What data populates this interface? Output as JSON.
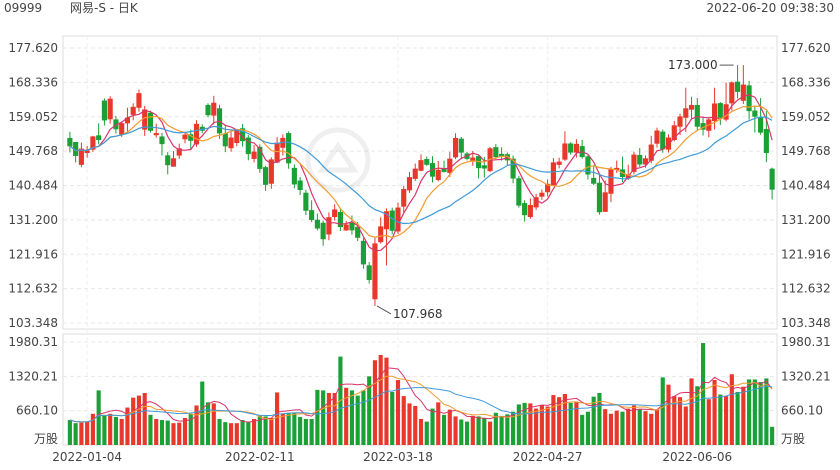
{
  "header": {
    "code": "09999",
    "name": "网易-S - 日K",
    "timestamp": "2022-06-20 09:38:30"
  },
  "chart_data": {
    "type": "candlestick",
    "price_axis": {
      "ylim": [
        103.348,
        177.62
      ],
      "ticks": [
        "177.620",
        "168.336",
        "159.052",
        "149.768",
        "140.484",
        "131.200",
        "121.916",
        "112.632",
        "103.348"
      ]
    },
    "volume_axis": {
      "ylim": [
        0,
        1980.31
      ],
      "ticks": [
        "1980.31",
        "1320.21",
        "660.10"
      ],
      "unit": "万股"
    },
    "x_labels": [
      {
        "index": 3,
        "label": "2022-01-04"
      },
      {
        "index": 33,
        "label": "2022-02-11"
      },
      {
        "index": 57,
        "label": "2022-03-18"
      },
      {
        "index": 83,
        "label": "2022-04-27"
      },
      {
        "index": 109,
        "label": "2022-06-06"
      }
    ],
    "annotations": [
      {
        "index": 116,
        "value": 173.0,
        "label": "173.000"
      },
      {
        "index": 53,
        "value": 107.968,
        "label": "107.968"
      }
    ],
    "colors": {
      "up": "#e8382b",
      "down": "#1aa035",
      "ma5": "#d9346a",
      "ma10": "#f29b2f",
      "ma20": "#3f9ad8"
    },
    "candles": [
      [
        153.2,
        151.2,
        155.0,
        149.4
      ],
      [
        152.1,
        148.6,
        152.1,
        146.7
      ],
      [
        146.2,
        150.3,
        152.1,
        145.4
      ],
      [
        149.4,
        149.8,
        151.2,
        148.0
      ],
      [
        150.3,
        153.6,
        153.9,
        149.6
      ],
      [
        153.9,
        152.9,
        157.3,
        151.6
      ],
      [
        163.3,
        158.2,
        164.0,
        156.7
      ],
      [
        158.5,
        163.8,
        164.6,
        157.2
      ],
      [
        158.2,
        155.8,
        159.3,
        154.5
      ],
      [
        154.4,
        157.2,
        157.8,
        153.6
      ],
      [
        157.4,
        158.7,
        161.5,
        155.1
      ],
      [
        159.7,
        161.6,
        162.7,
        158.1
      ],
      [
        161.6,
        165.3,
        166.4,
        160.4
      ],
      [
        155.7,
        160.9,
        162.0,
        153.9
      ],
      [
        160.0,
        155.4,
        160.7,
        154.8
      ],
      [
        154.2,
        154.5,
        157.2,
        153.4
      ],
      [
        153.6,
        151.8,
        154.7,
        148.6
      ],
      [
        148.5,
        146.1,
        149.5,
        143.5
      ],
      [
        145.7,
        147.7,
        149.8,
        145.6
      ],
      [
        148.7,
        150.4,
        151.8,
        147.7
      ],
      [
        153.1,
        154.1,
        154.9,
        151.9
      ],
      [
        154.2,
        152.7,
        155.6,
        150.1
      ],
      [
        151.7,
        157.0,
        158.1,
        150.9
      ],
      [
        156.2,
        155.4,
        157.0,
        154.6
      ],
      [
        162.1,
        159.6,
        162.7,
        158.9
      ],
      [
        159.5,
        162.7,
        164.7,
        157.0
      ],
      [
        161.2,
        154.7,
        162.3,
        153.1
      ],
      [
        154.4,
        151.2,
        156.5,
        149.5
      ],
      [
        150.7,
        153.3,
        155.4,
        149.6
      ],
      [
        152.1,
        155.4,
        155.6,
        151.1
      ],
      [
        155.8,
        152.6,
        157.1,
        151.0
      ],
      [
        153.3,
        149.1,
        154.1,
        147.3
      ],
      [
        147.8,
        149.5,
        151.4,
        146.7
      ],
      [
        150.8,
        145.1,
        151.6,
        143.9
      ],
      [
        145.3,
        140.8,
        145.8,
        139.0
      ],
      [
        141.1,
        147.4,
        148.1,
        139.6
      ],
      [
        146.8,
        151.9,
        153.6,
        146.5
      ],
      [
        150.8,
        153.2,
        154.3,
        148.6
      ],
      [
        154.5,
        146.6,
        155.1,
        145.0
      ],
      [
        145.1,
        140.9,
        146.2,
        139.7
      ],
      [
        141.7,
        139.4,
        142.8,
        137.9
      ],
      [
        138.4,
        133.8,
        139.3,
        132.5
      ],
      [
        133.7,
        131.3,
        136.5,
        130.6
      ],
      [
        131.1,
        129.0,
        132.9,
        128.4
      ],
      [
        130.3,
        126.1,
        131.0,
        124.2
      ],
      [
        127.4,
        131.8,
        133.2,
        125.7
      ],
      [
        132.1,
        133.9,
        135.4,
        131.0
      ],
      [
        133.2,
        129.4,
        134.1,
        128.2
      ],
      [
        128.5,
        129.8,
        130.9,
        128.2
      ],
      [
        130.3,
        128.5,
        132.4,
        127.2
      ],
      [
        129.2,
        126.5,
        130.6,
        125.5
      ],
      [
        125.4,
        119.3,
        126.3,
        118.0
      ],
      [
        118.8,
        115.1,
        119.8,
        114.0
      ],
      [
        109.9,
        124.7,
        126.5,
        107.968
      ],
      [
        125.3,
        129.3,
        131.9,
        124.8
      ],
      [
        128.8,
        133.4,
        134.3,
        118.9
      ],
      [
        133.6,
        128.4,
        134.5,
        127.3
      ],
      [
        128.2,
        134.4,
        135.9,
        127.4
      ],
      [
        134.9,
        139.4,
        140.4,
        133.2
      ],
      [
        139.3,
        142.6,
        144.1,
        138.5
      ],
      [
        142.4,
        144.9,
        146.4,
        141.7
      ],
      [
        144.6,
        147.2,
        148.9,
        144.3
      ],
      [
        147.5,
        146.2,
        148.3,
        145.8
      ],
      [
        146.4,
        143.0,
        148.4,
        141.3
      ],
      [
        142.1,
        144.6,
        147.1,
        141.6
      ],
      [
        145.0,
        144.3,
        147.2,
        144.0
      ],
      [
        144.0,
        147.6,
        149.6,
        142.8
      ],
      [
        148.2,
        153.2,
        154.6,
        147.6
      ],
      [
        153.0,
        149.5,
        153.6,
        147.6
      ],
      [
        149.0,
        147.8,
        149.6,
        147.3
      ],
      [
        147.2,
        147.9,
        149.8,
        145.8
      ],
      [
        148.3,
        145.3,
        148.7,
        142.4
      ],
      [
        145.8,
        145.2,
        148.2,
        142.6
      ],
      [
        144.5,
        150.4,
        150.9,
        144.1
      ],
      [
        150.7,
        148.3,
        151.7,
        147.6
      ],
      [
        148.9,
        148.5,
        150.8,
        147.2
      ],
      [
        148.8,
        147.4,
        149.4,
        145.8
      ],
      [
        147.6,
        142.5,
        148.6,
        141.1
      ],
      [
        142.3,
        135.2,
        143.1,
        134.5
      ],
      [
        135.6,
        132.6,
        136.5,
        130.7
      ],
      [
        132.1,
        135.1,
        137.0,
        131.5
      ],
      [
        134.7,
        137.2,
        138.2,
        133.9
      ],
      [
        137.6,
        138.4,
        139.4,
        136.6
      ],
      [
        138.8,
        140.8,
        142.1,
        137.5
      ],
      [
        140.7,
        146.6,
        147.9,
        140.6
      ],
      [
        146.2,
        146.8,
        148.0,
        145.1
      ],
      [
        147.6,
        151.7,
        155.1,
        147.1
      ],
      [
        151.7,
        149.5,
        152.2,
        148.8
      ],
      [
        149.5,
        151.6,
        153.0,
        148.0
      ],
      [
        151.0,
        148.3,
        152.8,
        147.7
      ],
      [
        148.2,
        143.6,
        148.7,
        142.1
      ],
      [
        142.4,
        141.1,
        145.7,
        140.6
      ],
      [
        141.1,
        133.4,
        143.4,
        132.6
      ],
      [
        133.5,
        138.5,
        141.8,
        133.3
      ],
      [
        138.4,
        144.8,
        145.5,
        136.0
      ],
      [
        144.8,
        145.1,
        147.2,
        143.9
      ],
      [
        144.7,
        142.9,
        148.3,
        141.4
      ],
      [
        142.5,
        143.3,
        146.1,
        142.0
      ],
      [
        144.3,
        148.7,
        149.6,
        143.5
      ],
      [
        148.6,
        146.3,
        150.6,
        145.5
      ],
      [
        146.3,
        147.7,
        148.6,
        145.3
      ],
      [
        147.3,
        151.4,
        153.9,
        146.5
      ],
      [
        151.9,
        155.2,
        156.1,
        150.7
      ],
      [
        154.9,
        150.4,
        155.6,
        149.3
      ],
      [
        150.3,
        153.3,
        154.3,
        149.4
      ],
      [
        152.9,
        156.6,
        157.9,
        152.4
      ],
      [
        156.5,
        159.0,
        159.9,
        154.1
      ],
      [
        158.9,
        161.2,
        166.9,
        154.9
      ],
      [
        161.1,
        162.1,
        164.4,
        158.4
      ],
      [
        162.1,
        156.5,
        164.1,
        155.2
      ],
      [
        157.2,
        155.7,
        159.1,
        154.0
      ],
      [
        155.4,
        158.2,
        158.6,
        153.5
      ],
      [
        158.0,
        162.5,
        166.9,
        155.6
      ],
      [
        162.6,
        158.9,
        163.0,
        156.8
      ],
      [
        158.4,
        162.3,
        168.3,
        157.8
      ],
      [
        162.8,
        168.2,
        168.6,
        160.7
      ],
      [
        168.4,
        165.9,
        173.0,
        164.0
      ],
      [
        163.5,
        167.6,
        173.0,
        162.5
      ],
      [
        167.4,
        160.7,
        168.7,
        158.3
      ],
      [
        160.6,
        159.2,
        162.1,
        154.8
      ],
      [
        158.8,
        154.9,
        164.1,
        154.2
      ],
      [
        155.6,
        149.4,
        160.6,
        146.8
      ],
      [
        144.9,
        139.5,
        145.3,
        136.7
      ]
    ],
    "volumes": [
      480,
      420,
      430,
      450,
      600,
      1050,
      560,
      600,
      540,
      500,
      720,
      910,
      950,
      1000,
      580,
      500,
      480,
      470,
      420,
      430,
      520,
      600,
      760,
      1220,
      820,
      800,
      500,
      440,
      420,
      420,
      480,
      450,
      500,
      560,
      550,
      520,
      1010,
      600,
      620,
      620,
      540,
      500,
      500,
      1060,
      1050,
      1000,
      1000,
      1700,
      1100,
      1050,
      950,
      1050,
      1320,
      1630,
      1730,
      1680,
      1020,
      1250,
      940,
      800,
      750,
      500,
      450,
      700,
      820,
      580,
      680,
      550,
      490,
      450,
      560,
      550,
      520,
      450,
      620,
      560,
      590,
      640,
      780,
      810,
      800,
      700,
      760,
      740,
      960,
      920,
      980,
      810,
      820,
      580,
      640,
      930,
      1000,
      690,
      600,
      660,
      640,
      700,
      760,
      690,
      650,
      600,
      680,
      1300,
      1160,
      940,
      920,
      740,
      1280,
      1130,
      1960,
      880,
      1250,
      970,
      940,
      1360,
      1020,
      1120,
      1260,
      1260,
      1210,
      1280,
      350
    ],
    "ma_periods": [
      5,
      10,
      20
    ]
  }
}
